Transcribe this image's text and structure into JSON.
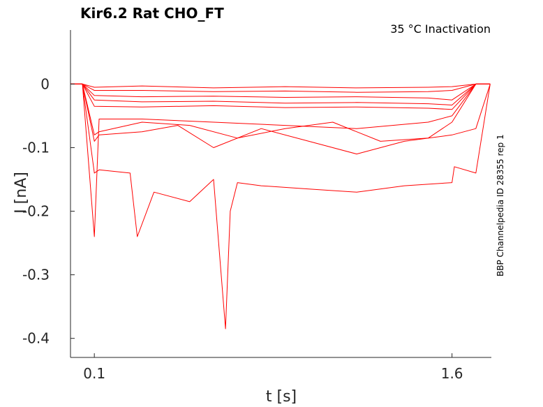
{
  "chart_data": {
    "type": "line",
    "title": "Kir6.2  Rat  CHO_FT",
    "subtitle": "35 °C  Inactivation",
    "side_note": "BBP Channelpedia ID 28355 rep 1",
    "xlabel": "t [s]",
    "ylabel": "I [nA]",
    "xlim": [
      0.0,
      1.765
    ],
    "ylim": [
      -0.43,
      0.085
    ],
    "xticks": [
      0.1,
      1.6
    ],
    "xtick_labels": [
      "0.1",
      "1.6"
    ],
    "yticks": [
      0,
      -0.1,
      -0.2,
      -0.3,
      -0.4
    ],
    "ytick_labels": [
      "0",
      "-0.1",
      "-0.2",
      "-0.3",
      "-0.4"
    ],
    "grid": false,
    "line_color": "#ff0000",
    "series": [
      {
        "x": [
          0.0,
          0.05,
          0.1,
          0.3,
          0.6,
          0.9,
          1.2,
          1.5,
          1.6,
          1.7,
          1.76
        ],
        "y": [
          0.0,
          0.0,
          -0.005,
          -0.003,
          -0.006,
          -0.004,
          -0.006,
          -0.005,
          -0.004,
          0.0,
          0.0
        ]
      },
      {
        "x": [
          0.0,
          0.05,
          0.1,
          0.3,
          0.6,
          0.9,
          1.2,
          1.5,
          1.6,
          1.7,
          1.76
        ],
        "y": [
          0.0,
          0.0,
          -0.01,
          -0.01,
          -0.012,
          -0.011,
          -0.013,
          -0.012,
          -0.01,
          0.0,
          0.0
        ]
      },
      {
        "x": [
          0.0,
          0.05,
          0.1,
          0.3,
          0.6,
          0.9,
          1.2,
          1.5,
          1.6,
          1.7,
          1.76
        ],
        "y": [
          0.0,
          0.0,
          -0.018,
          -0.02,
          -0.019,
          -0.021,
          -0.02,
          -0.022,
          -0.025,
          0.0,
          0.0
        ]
      },
      {
        "x": [
          0.0,
          0.05,
          0.1,
          0.3,
          0.6,
          0.9,
          1.2,
          1.5,
          1.6,
          1.7,
          1.76
        ],
        "y": [
          0.0,
          0.0,
          -0.025,
          -0.028,
          -0.027,
          -0.03,
          -0.029,
          -0.031,
          -0.033,
          0.0,
          0.0
        ]
      },
      {
        "x": [
          0.0,
          0.05,
          0.1,
          0.3,
          0.6,
          0.9,
          1.2,
          1.5,
          1.6,
          1.7,
          1.76
        ],
        "y": [
          0.0,
          0.0,
          -0.035,
          -0.036,
          -0.034,
          -0.037,
          -0.036,
          -0.038,
          -0.04,
          0.0,
          0.0
        ]
      },
      {
        "x": [
          0.0,
          0.05,
          0.1,
          0.12,
          0.3,
          0.6,
          0.9,
          1.2,
          1.5,
          1.6,
          1.7,
          1.76
        ],
        "y": [
          0.0,
          0.0,
          -0.24,
          -0.055,
          -0.055,
          -0.06,
          -0.065,
          -0.07,
          -0.06,
          -0.05,
          0.0,
          0.0
        ]
      },
      {
        "x": [
          0.0,
          0.05,
          0.1,
          0.12,
          0.3,
          0.5,
          0.7,
          0.9,
          1.1,
          1.3,
          1.5,
          1.6,
          1.7,
          1.76
        ],
        "y": [
          0.0,
          0.0,
          -0.08,
          -0.075,
          -0.06,
          -0.065,
          -0.085,
          -0.07,
          -0.06,
          -0.09,
          -0.085,
          -0.06,
          0.0,
          0.0
        ]
      },
      {
        "x": [
          0.0,
          0.05,
          0.1,
          0.12,
          0.3,
          0.45,
          0.6,
          0.8,
          1.0,
          1.2,
          1.4,
          1.6,
          1.7,
          1.76
        ],
        "y": [
          0.0,
          0.0,
          -0.09,
          -0.08,
          -0.075,
          -0.065,
          -0.1,
          -0.07,
          -0.09,
          -0.11,
          -0.09,
          -0.08,
          -0.07,
          0.0
        ]
      },
      {
        "x": [
          0.0,
          0.05,
          0.1,
          0.12,
          0.25,
          0.28,
          0.35,
          0.5,
          0.6,
          0.65,
          0.67,
          0.7,
          0.8,
          1.0,
          1.2,
          1.4,
          1.6,
          1.61,
          1.7,
          1.76
        ],
        "y": [
          0.0,
          0.0,
          -0.14,
          -0.135,
          -0.14,
          -0.24,
          -0.17,
          -0.185,
          -0.15,
          -0.385,
          -0.2,
          -0.155,
          -0.16,
          -0.165,
          -0.17,
          -0.16,
          -0.155,
          -0.13,
          -0.14,
          0.0
        ]
      }
    ]
  }
}
